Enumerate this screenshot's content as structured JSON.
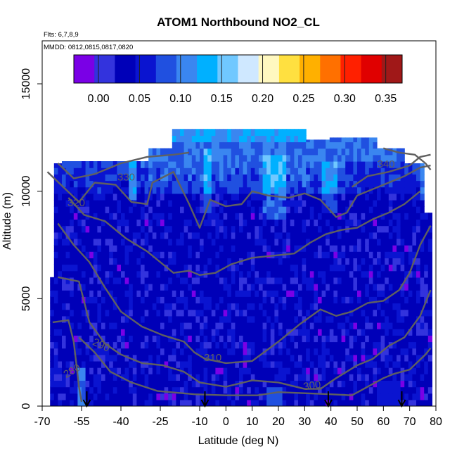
{
  "chart_data": {
    "type": "heatmap",
    "title": "ATOM1 Northbound NO2_CL",
    "subtitle_lines": [
      "Flts: 6,7,8,9",
      "MMDD: 0812,0815,0817,0820"
    ],
    "xlabel": "Latitude (deg N)",
    "ylabel": "Altitude (m)",
    "xlim": [
      -70,
      80
    ],
    "ylim": [
      0,
      17000
    ],
    "x_ticks": [
      -70,
      -55,
      -40,
      -25,
      -10,
      0,
      10,
      20,
      30,
      40,
      50,
      60,
      70,
      80
    ],
    "y_ticks": [
      0,
      5000,
      10000,
      15000
    ],
    "colorbar": {
      "range": [
        -0.03,
        0.37
      ],
      "ticks": [
        "0.00",
        "0.05",
        "0.10",
        "0.15",
        "0.20",
        "0.25",
        "0.30",
        "0.35"
      ],
      "colors": [
        "#7a00e6",
        "#3333dd",
        "#0000b8",
        "#0a14d0",
        "#2050e0",
        "#3a86f0",
        "#00b0ff",
        "#70c8ff",
        "#cfe8ff",
        "#fff8c0",
        "#ffe040",
        "#ffb000",
        "#ff7000",
        "#ff2000",
        "#e00000",
        "#a01818"
      ]
    },
    "contours": [
      {
        "label": "280",
        "points": [
          [
            -66,
            3900
          ],
          [
            -60,
            4000
          ],
          [
            -58,
            3000
          ],
          [
            -57,
            2000
          ],
          [
            -56,
            900
          ],
          [
            -55,
            200
          ]
        ]
      },
      {
        "label": "290",
        "points": [
          [
            -56,
            3200
          ],
          [
            -50,
            2500
          ],
          [
            -44,
            1600
          ],
          [
            -36,
            1100
          ],
          [
            -26,
            700
          ],
          [
            -12,
            550
          ],
          [
            0,
            500
          ],
          [
            12,
            500
          ],
          [
            20,
            650
          ],
          [
            30,
            600
          ],
          [
            40,
            550
          ],
          [
            48,
            500
          ],
          [
            54,
            900
          ],
          [
            60,
            1300
          ],
          [
            64,
            1500
          ],
          [
            70,
            1700
          ],
          [
            76,
            2400
          ],
          [
            78,
            2700
          ]
        ]
      },
      {
        "label": "300",
        "points": [
          [
            -64,
            6000
          ],
          [
            -56,
            5800
          ],
          [
            -52,
            3900
          ],
          [
            -46,
            2900
          ],
          [
            -40,
            2400
          ],
          [
            -32,
            2000
          ],
          [
            -24,
            1900
          ],
          [
            -16,
            1600
          ],
          [
            -10,
            1100
          ],
          [
            0,
            900
          ],
          [
            10,
            1200
          ],
          [
            20,
            1100
          ],
          [
            30,
            800
          ],
          [
            36,
            800
          ],
          [
            42,
            1300
          ],
          [
            50,
            1900
          ],
          [
            56,
            2200
          ],
          [
            62,
            2800
          ],
          [
            68,
            3200
          ],
          [
            74,
            4200
          ],
          [
            78,
            5400
          ]
        ]
      },
      {
        "label": "310",
        "points": [
          [
            -64,
            8500
          ],
          [
            -58,
            7500
          ],
          [
            -52,
            6700
          ],
          [
            -46,
            5500
          ],
          [
            -40,
            4400
          ],
          [
            -32,
            3700
          ],
          [
            -24,
            3300
          ],
          [
            -16,
            3000
          ],
          [
            -12,
            2500
          ],
          [
            -8,
            2200
          ],
          [
            0,
            2000
          ],
          [
            10,
            2100
          ],
          [
            20,
            3000
          ],
          [
            28,
            3800
          ],
          [
            36,
            4500
          ],
          [
            42,
            4200
          ],
          [
            48,
            4400
          ],
          [
            54,
            4800
          ],
          [
            60,
            4900
          ],
          [
            66,
            5400
          ],
          [
            70,
            6200
          ],
          [
            74,
            7500
          ],
          [
            78,
            8400
          ]
        ]
      },
      {
        "label": "",
        "points": [
          [
            -60,
            9700
          ],
          [
            -54,
            8900
          ],
          [
            -46,
            8600
          ],
          [
            -38,
            7800
          ],
          [
            -30,
            7200
          ],
          [
            -24,
            6600
          ],
          [
            -20,
            6200
          ],
          [
            -14,
            6300
          ],
          [
            -10,
            6100
          ],
          [
            -4,
            6200
          ],
          [
            2,
            6600
          ],
          [
            10,
            6900
          ],
          [
            18,
            7000
          ],
          [
            26,
            7100
          ],
          [
            32,
            7600
          ],
          [
            38,
            8000
          ],
          [
            44,
            8200
          ],
          [
            50,
            8300
          ],
          [
            56,
            8700
          ],
          [
            62,
            9000
          ],
          [
            68,
            9400
          ],
          [
            74,
            10000
          ]
        ]
      },
      {
        "label": "320",
        "points": [
          [
            -68,
            10900
          ],
          [
            -62,
            10200
          ],
          [
            -56,
            9500
          ],
          [
            -50,
            10400
          ],
          [
            -42,
            10300
          ],
          [
            -36,
            9500
          ],
          [
            -30,
            9400
          ],
          [
            -28,
            10400
          ],
          [
            -20,
            10900
          ],
          [
            -14,
            9400
          ],
          [
            -10,
            8300
          ],
          [
            -6,
            9600
          ],
          [
            0,
            9300
          ],
          [
            6,
            9400
          ],
          [
            10,
            10000
          ],
          [
            16,
            9800
          ],
          [
            24,
            9700
          ],
          [
            30,
            9900
          ],
          [
            36,
            9600
          ],
          [
            42,
            8800
          ],
          [
            46,
            9000
          ],
          [
            50,
            9800
          ],
          [
            56,
            10100
          ],
          [
            62,
            10400
          ],
          [
            68,
            10700
          ],
          [
            74,
            11100
          ],
          [
            78,
            11200
          ]
        ]
      },
      {
        "label": "330",
        "points": [
          [
            -64,
            11300
          ],
          [
            -58,
            10600
          ],
          [
            -50,
            10800
          ],
          [
            -40,
            11300
          ],
          [
            -30,
            11600
          ],
          [
            -20,
            11700
          ],
          [
            -14,
            11800
          ]
        ]
      },
      {
        "label": "340",
        "points": [
          [
            48,
            10200
          ],
          [
            54,
            10700
          ],
          [
            62,
            10900
          ],
          [
            70,
            11200
          ],
          [
            74,
            11600
          ],
          [
            78,
            11700
          ]
        ]
      },
      {
        "label": "",
        "points": [
          [
            60,
            12000
          ],
          [
            66,
            11800
          ],
          [
            72,
            11700
          ],
          [
            76,
            11300
          ],
          [
            78,
            11000
          ]
        ]
      }
    ],
    "flight_markers_lat": [
      -53,
      -8,
      39,
      67
    ]
  }
}
